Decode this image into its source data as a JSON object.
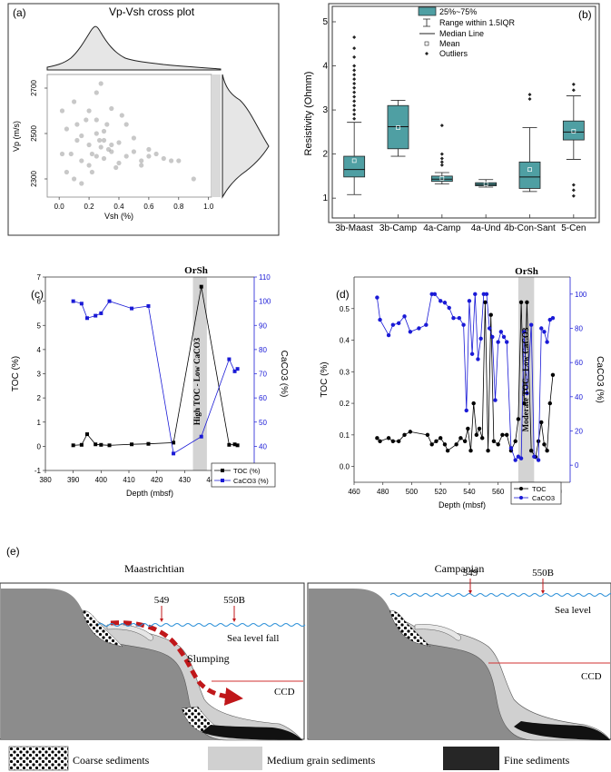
{
  "panel_a": {
    "label": "(a)",
    "title": "Vp-Vsh cross plot",
    "xlabel": "Vsh (%)",
    "ylabel": "Vp (m/s)",
    "xticks": [
      "0.0",
      "0.2",
      "0.4",
      "0.6",
      "0.8",
      "1.0"
    ],
    "yticks": [
      "2700",
      "2500",
      "2300"
    ]
  },
  "panel_b": {
    "label": "(b)",
    "legend": [
      "25%~75%",
      "Range within 1.5IQR",
      "Median Line",
      "Mean",
      "Outliers"
    ],
    "ylabel": "Resistivity (Ohmm)"
  },
  "panel_c": {
    "label": "(c)",
    "header": "OrSh",
    "shade_label": "High TOC - Low CaCO3",
    "legend": [
      "TOC (%)",
      "CaCO3 (%)"
    ]
  },
  "panel_d": {
    "label": "(d)",
    "header": "OrSh",
    "shade_label": "Moderate TOC - Low CaCO3",
    "legend": [
      "TOC",
      "CaCO3"
    ]
  },
  "panel_e": {
    "label": "(e)",
    "left_title": "Maastrichtian",
    "right_title": "Campanian",
    "site1": "549",
    "site2": "550B",
    "left_sea": "Sea level fall",
    "right_sea": "Sea level",
    "slumping": "Slumping",
    "ccd": "CCD",
    "legend": [
      "Coarse sediments",
      "Medium grain sediments",
      "Fine sediments"
    ]
  },
  "chart_data": [
    {
      "type": "scatter",
      "title": "Vp-Vsh cross plot",
      "xlabel": "Vsh (%)",
      "ylabel": "Vp (m/s)",
      "xlim": [
        -0.08,
        1.02
      ],
      "ylim": [
        2220,
        2760
      ],
      "x": [
        0.02,
        0.05,
        0.08,
        0.1,
        0.12,
        0.15,
        0.18,
        0.2,
        0.22,
        0.25,
        0.25,
        0.28,
        0.3,
        0.32,
        0.35,
        0.38,
        0.4,
        0.45,
        0.5,
        0.55,
        0.6,
        0.65,
        0.7,
        0.8,
        0.9,
        0.05,
        0.1,
        0.15,
        0.2,
        0.25,
        0.3,
        0.35,
        0.4,
        0.5,
        0.6,
        0.02,
        0.12,
        0.22,
        0.27,
        0.33,
        0.45,
        0.55,
        0.75,
        0.15,
        0.25,
        0.3,
        0.2,
        0.28,
        0.35,
        0.42
      ],
      "y": [
        2600,
        2520,
        2410,
        2640,
        2470,
        2380,
        2560,
        2450,
        2410,
        2500,
        2680,
        2440,
        2390,
        2540,
        2610,
        2350,
        2460,
        2400,
        2420,
        2380,
        2430,
        2410,
        2390,
        2380,
        2300,
        2330,
        2300,
        2490,
        2360,
        2560,
        2470,
        2420,
        2370,
        2480,
        2400,
        2410,
        2540,
        2330,
        2470,
        2430,
        2540,
        2360,
        2380,
        2280,
        2400,
        2510,
        2600,
        2720,
        2450,
        2580
      ]
    },
    {
      "type": "box",
      "ylabel": "Resistivity (Ohmm)",
      "ylim": [
        0.55,
        5.35
      ],
      "categories": [
        "3b-Maast",
        "3b-Camp",
        "4a-Camp",
        "4a-Und",
        "4b-Con-Sant",
        "5-Cen"
      ],
      "q1": [
        1.48,
        2.12,
        1.38,
        1.28,
        1.22,
        2.32
      ],
      "median": [
        1.65,
        2.62,
        1.43,
        1.31,
        1.48,
        2.5
      ],
      "q3": [
        1.95,
        3.1,
        1.5,
        1.35,
        1.82,
        2.75
      ],
      "whisker_low": [
        1.08,
        1.95,
        1.32,
        1.25,
        1.15,
        1.88
      ],
      "whisker_high": [
        2.72,
        3.22,
        1.58,
        1.42,
        2.6,
        3.32
      ],
      "mean": [
        1.85,
        2.6,
        1.45,
        1.32,
        1.65,
        2.52
      ],
      "outliers": [
        [
          2.8,
          2.9,
          3.0,
          3.1,
          3.2,
          3.3,
          3.4,
          3.5,
          3.6,
          3.7,
          3.8,
          3.9,
          4.0,
          4.2,
          4.4,
          4.65
        ],
        [],
        [
          1.75,
          1.82,
          1.9,
          2.0,
          2.65
        ],
        [],
        [
          3.25,
          3.35
        ],
        [
          1.05,
          1.18,
          1.3,
          3.45,
          3.58
        ]
      ]
    },
    {
      "type": "line",
      "xlabel": "Depth (mbsf)",
      "ylabel": "TOC (%)",
      "ylabel_right": "CaCO3 (%)",
      "xlim": [
        380,
        455
      ],
      "ylim": [
        -1,
        7
      ],
      "ylim_right": [
        30,
        110
      ],
      "series": [
        {
          "name": "TOC (%)",
          "axis": "left",
          "color": "#000000",
          "x": [
            390,
            393,
            395,
            398,
            400,
            403,
            411,
            417,
            426,
            436,
            446,
            448,
            449
          ],
          "y": [
            0.04,
            0.06,
            0.5,
            0.08,
            0.06,
            0.04,
            0.08,
            0.1,
            0.15,
            6.6,
            0.06,
            0.08,
            0.04
          ]
        },
        {
          "name": "CaCO3 (%)",
          "axis": "right",
          "color": "#1a1ad6",
          "x": [
            390,
            393,
            395,
            398,
            400,
            403,
            411,
            417,
            426,
            436,
            446,
            448,
            449
          ],
          "y": [
            100,
            99,
            93,
            94,
            95,
            100,
            97,
            98,
            37,
            44,
            76,
            71,
            72
          ]
        }
      ],
      "shaded_x": [
        433,
        438
      ]
    },
    {
      "type": "line",
      "xlabel": "Depth (mbsf)",
      "ylabel": "TOC (%)",
      "ylabel_right": "CaCO3 (%)",
      "xlim": [
        460,
        610
      ],
      "ylim": [
        -0.05,
        0.6
      ],
      "ylim_right": [
        -10,
        110
      ],
      "xticks": [
        460,
        480,
        500,
        520,
        540,
        560,
        580,
        600
      ],
      "series": [
        {
          "name": "TOC",
          "axis": "left",
          "color": "#000000",
          "x": [
            476,
            478,
            484,
            487,
            491,
            495,
            499,
            511,
            514,
            517,
            520,
            523,
            525,
            531,
            534,
            537,
            539,
            541,
            543,
            545,
            547,
            549,
            551,
            553,
            555,
            557,
            560,
            563,
            566,
            569,
            572,
            574,
            576,
            578,
            580,
            583,
            586,
            588,
            590,
            592,
            594,
            596,
            598
          ],
          "y": [
            0.09,
            0.08,
            0.09,
            0.08,
            0.08,
            0.1,
            0.11,
            0.1,
            0.07,
            0.08,
            0.09,
            0.07,
            0.05,
            0.07,
            0.09,
            0.08,
            0.12,
            0.05,
            0.2,
            0.1,
            0.12,
            0.09,
            0.52,
            0.05,
            0.48,
            0.08,
            0.07,
            0.1,
            0.1,
            0.05,
            0.08,
            0.15,
            0.52,
            0.2,
            0.52,
            0.05,
            0.03,
            0.08,
            0.14,
            0.07,
            0.05,
            0.2,
            0.29
          ]
        },
        {
          "name": "CaCO3",
          "axis": "right",
          "color": "#1a1ad6",
          "x": [
            476,
            478,
            484,
            487,
            491,
            495,
            499,
            505,
            510,
            514,
            516,
            520,
            523,
            526,
            529,
            533,
            536,
            538,
            540,
            542,
            544,
            546,
            548,
            550,
            552,
            554,
            556,
            558,
            560,
            562,
            564,
            566,
            569,
            572,
            574,
            576,
            578,
            580,
            583,
            585,
            588,
            590,
            592,
            594,
            596,
            598
          ],
          "y": [
            98,
            85,
            76,
            82,
            83,
            87,
            78,
            80,
            82,
            100,
            100,
            96,
            95,
            92,
            86,
            86,
            82,
            32,
            96,
            65,
            100,
            62,
            74,
            100,
            100,
            80,
            75,
            38,
            72,
            78,
            75,
            72,
            10,
            3,
            5,
            4,
            78,
            42,
            82,
            5,
            3,
            80,
            78,
            72,
            85,
            86
          ]
        }
      ],
      "shaded_x": [
        574,
        585
      ]
    }
  ]
}
